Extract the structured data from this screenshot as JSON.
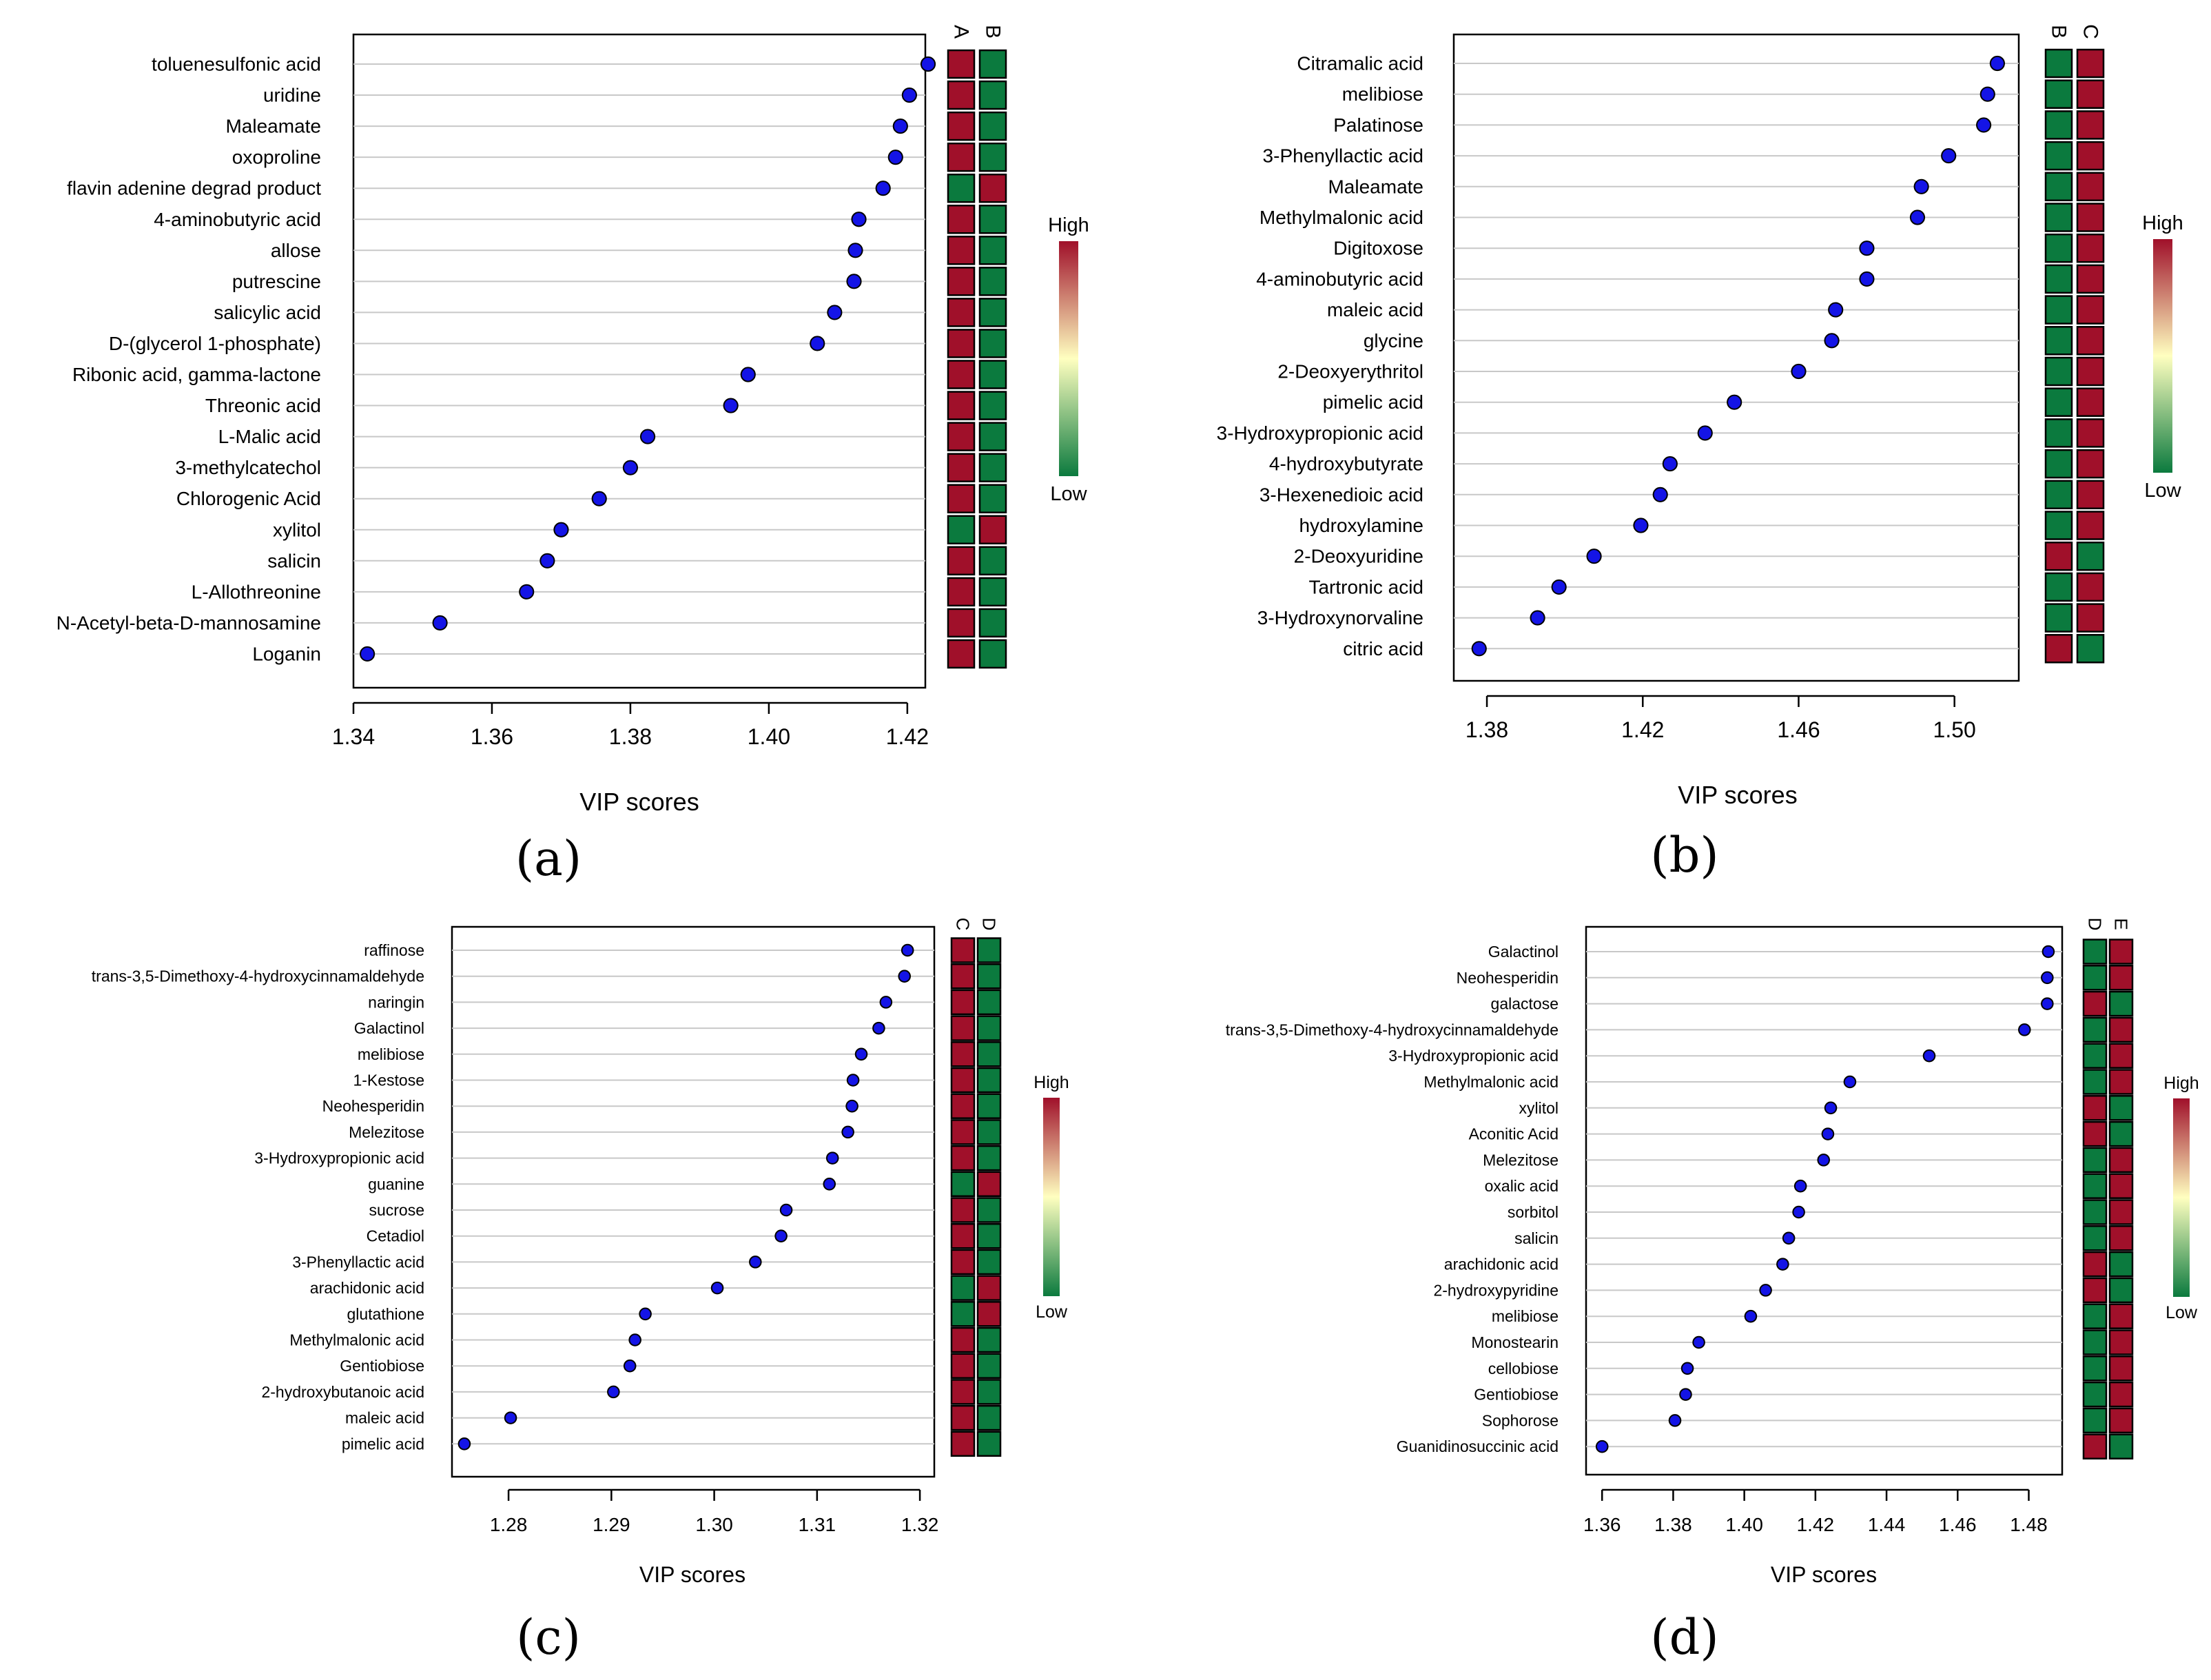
{
  "colors": {
    "high": "#a0102a",
    "mid": "#ffffc0",
    "low": "#0b7a3e",
    "point": "#1414e6",
    "grid": "#c8c8c8"
  },
  "chart_data": [
    {
      "type": "scatter",
      "panel_label": "(a)",
      "xlabel": "VIP scores",
      "xlim": [
        1.34,
        1.425
      ],
      "xticks": [
        "1.34",
        "1.36",
        "1.38",
        "1.40",
        "1.42"
      ],
      "groups": [
        "A",
        "B"
      ],
      "legend": {
        "high": "High",
        "low": "Low"
      },
      "rows": [
        {
          "name": "toluenesulfonic acid",
          "vip": 1.423,
          "levels": [
            "high",
            "low"
          ]
        },
        {
          "name": "uridine",
          "vip": 1.4203,
          "levels": [
            "high",
            "low"
          ]
        },
        {
          "name": "Maleamate",
          "vip": 1.419,
          "levels": [
            "high",
            "low"
          ]
        },
        {
          "name": "oxoproline",
          "vip": 1.4183,
          "levels": [
            "high",
            "low"
          ]
        },
        {
          "name": "flavin adenine degrad product",
          "vip": 1.4165,
          "levels": [
            "low",
            "high"
          ]
        },
        {
          "name": "4-aminobutyric acid",
          "vip": 1.413,
          "levels": [
            "high",
            "low"
          ]
        },
        {
          "name": "allose",
          "vip": 1.4125,
          "levels": [
            "high",
            "low"
          ]
        },
        {
          "name": "putrescine",
          "vip": 1.4123,
          "levels": [
            "high",
            "low"
          ]
        },
        {
          "name": "salicylic acid",
          "vip": 1.4095,
          "levels": [
            "high",
            "low"
          ]
        },
        {
          "name": "D-(glycerol 1-phosphate)",
          "vip": 1.407,
          "levels": [
            "high",
            "low"
          ]
        },
        {
          "name": "Ribonic acid, gamma-lactone",
          "vip": 1.397,
          "levels": [
            "high",
            "low"
          ]
        },
        {
          "name": "Threonic acid",
          "vip": 1.3945,
          "levels": [
            "high",
            "low"
          ]
        },
        {
          "name": "L-Malic acid",
          "vip": 1.3825,
          "levels": [
            "high",
            "low"
          ]
        },
        {
          "name": "3-methylcatechol",
          "vip": 1.38,
          "levels": [
            "high",
            "low"
          ]
        },
        {
          "name": "Chlorogenic Acid",
          "vip": 1.3755,
          "levels": [
            "high",
            "low"
          ]
        },
        {
          "name": "xylitol",
          "vip": 1.37,
          "levels": [
            "low",
            "high"
          ]
        },
        {
          "name": "salicin",
          "vip": 1.368,
          "levels": [
            "high",
            "low"
          ]
        },
        {
          "name": "L-Allothreonine",
          "vip": 1.365,
          "levels": [
            "high",
            "low"
          ]
        },
        {
          "name": "N-Acetyl-beta-D-mannosamine",
          "vip": 1.3525,
          "levels": [
            "high",
            "low"
          ]
        },
        {
          "name": "Loganin",
          "vip": 1.342,
          "levels": [
            "high",
            "low"
          ]
        }
      ]
    },
    {
      "type": "scatter",
      "panel_label": "(b)",
      "xlabel": "VIP scores",
      "xlim": [
        1.37,
        1.52
      ],
      "xticks": [
        "1.38",
        "1.42",
        "1.46",
        "1.50"
      ],
      "groups": [
        "B",
        "C"
      ],
      "legend": {
        "high": "High",
        "low": "Low"
      },
      "rows": [
        {
          "name": "Citramalic acid",
          "vip": 1.511,
          "levels": [
            "low",
            "high"
          ]
        },
        {
          "name": "melibiose",
          "vip": 1.5085,
          "levels": [
            "low",
            "high"
          ]
        },
        {
          "name": "Palatinose",
          "vip": 1.5075,
          "levels": [
            "low",
            "high"
          ]
        },
        {
          "name": "3-Phenyllactic acid",
          "vip": 1.4985,
          "levels": [
            "low",
            "high"
          ]
        },
        {
          "name": "Maleamate",
          "vip": 1.4915,
          "levels": [
            "low",
            "high"
          ]
        },
        {
          "name": "Methylmalonic acid",
          "vip": 1.4905,
          "levels": [
            "low",
            "high"
          ]
        },
        {
          "name": "Digitoxose",
          "vip": 1.4775,
          "levels": [
            "low",
            "high"
          ]
        },
        {
          "name": "4-aminobutyric acid",
          "vip": 1.4775,
          "levels": [
            "low",
            "high"
          ]
        },
        {
          "name": "maleic acid",
          "vip": 1.4695,
          "levels": [
            "low",
            "high"
          ]
        },
        {
          "name": "glycine",
          "vip": 1.4685,
          "levels": [
            "low",
            "high"
          ]
        },
        {
          "name": "2-Deoxyerythritol",
          "vip": 1.46,
          "levels": [
            "low",
            "high"
          ]
        },
        {
          "name": "pimelic acid",
          "vip": 1.4435,
          "levels": [
            "low",
            "high"
          ]
        },
        {
          "name": "3-Hydroxypropionic acid",
          "vip": 1.436,
          "levels": [
            "low",
            "high"
          ]
        },
        {
          "name": "4-hydroxybutyrate",
          "vip": 1.427,
          "levels": [
            "low",
            "high"
          ]
        },
        {
          "name": "3-Hexenedioic acid",
          "vip": 1.4245,
          "levels": [
            "low",
            "high"
          ]
        },
        {
          "name": "hydroxylamine",
          "vip": 1.4195,
          "levels": [
            "low",
            "high"
          ]
        },
        {
          "name": "2-Deoxyuridine",
          "vip": 1.4075,
          "levels": [
            "high",
            "low"
          ]
        },
        {
          "name": "Tartronic acid",
          "vip": 1.3985,
          "levels": [
            "low",
            "high"
          ]
        },
        {
          "name": "3-Hydroxynorvaline",
          "vip": 1.393,
          "levels": [
            "low",
            "high"
          ]
        },
        {
          "name": "citric acid",
          "vip": 1.378,
          "levels": [
            "high",
            "low"
          ]
        }
      ]
    },
    {
      "type": "scatter",
      "panel_label": "(c)",
      "xlabel": "VIP scores",
      "xlim": [
        1.275,
        1.32
      ],
      "xticks": [
        "1.28",
        "1.29",
        "1.30",
        "1.31",
        "1.32"
      ],
      "groups": [
        "C",
        "D"
      ],
      "legend": {
        "high": "High",
        "low": "Low"
      },
      "rows": [
        {
          "name": "raffinose",
          "vip": 1.3188,
          "levels": [
            "high",
            "low"
          ]
        },
        {
          "name": "trans-3,5-Dimethoxy-4-hydroxycinnamaldehyde",
          "vip": 1.3185,
          "levels": [
            "high",
            "low"
          ]
        },
        {
          "name": "naringin",
          "vip": 1.3167,
          "levels": [
            "high",
            "low"
          ]
        },
        {
          "name": "Galactinol",
          "vip": 1.316,
          "levels": [
            "high",
            "low"
          ]
        },
        {
          "name": "melibiose",
          "vip": 1.3143,
          "levels": [
            "high",
            "low"
          ]
        },
        {
          "name": "1-Kestose",
          "vip": 1.3135,
          "levels": [
            "high",
            "low"
          ]
        },
        {
          "name": "Neohesperidin",
          "vip": 1.3134,
          "levels": [
            "high",
            "low"
          ]
        },
        {
          "name": "Melezitose",
          "vip": 1.313,
          "levels": [
            "high",
            "low"
          ]
        },
        {
          "name": "3-Hydroxypropionic acid",
          "vip": 1.3115,
          "levels": [
            "high",
            "low"
          ]
        },
        {
          "name": "guanine",
          "vip": 1.3112,
          "levels": [
            "low",
            "high"
          ]
        },
        {
          "name": "sucrose",
          "vip": 1.307,
          "levels": [
            "high",
            "low"
          ]
        },
        {
          "name": "Cetadiol",
          "vip": 1.3065,
          "levels": [
            "high",
            "low"
          ]
        },
        {
          "name": "3-Phenyllactic acid",
          "vip": 1.304,
          "levels": [
            "high",
            "low"
          ]
        },
        {
          "name": "arachidonic acid",
          "vip": 1.3003,
          "levels": [
            "low",
            "high"
          ]
        },
        {
          "name": "glutathione",
          "vip": 1.2933,
          "levels": [
            "low",
            "high"
          ]
        },
        {
          "name": "Methylmalonic acid",
          "vip": 1.2923,
          "levels": [
            "high",
            "low"
          ]
        },
        {
          "name": "Gentiobiose",
          "vip": 1.2918,
          "levels": [
            "high",
            "low"
          ]
        },
        {
          "name": "2-hydroxybutanoic acid",
          "vip": 1.2902,
          "levels": [
            "high",
            "low"
          ]
        },
        {
          "name": "maleic acid",
          "vip": 1.2802,
          "levels": [
            "high",
            "low"
          ]
        },
        {
          "name": "pimelic acid",
          "vip": 1.2757,
          "levels": [
            "high",
            "low"
          ]
        }
      ]
    },
    {
      "type": "scatter",
      "panel_label": "(d)",
      "xlabel": "VIP scores",
      "xlim": [
        1.355,
        1.49
      ],
      "xticks": [
        "1.36",
        "1.38",
        "1.40",
        "1.42",
        "1.44",
        "1.46",
        "1.48"
      ],
      "groups": [
        "D",
        "E"
      ],
      "legend": {
        "high": "High",
        "low": "Low"
      },
      "rows": [
        {
          "name": "Galactinol",
          "vip": 1.4855,
          "levels": [
            "low",
            "high"
          ]
        },
        {
          "name": "Neohesperidin",
          "vip": 1.4852,
          "levels": [
            "low",
            "high"
          ]
        },
        {
          "name": "galactose",
          "vip": 1.4852,
          "levels": [
            "high",
            "low"
          ]
        },
        {
          "name": "trans-3,5-Dimethoxy-4-hydroxycinnamaldehyde",
          "vip": 1.4788,
          "levels": [
            "low",
            "high"
          ]
        },
        {
          "name": "3-Hydroxypropionic acid",
          "vip": 1.452,
          "levels": [
            "low",
            "high"
          ]
        },
        {
          "name": "Methylmalonic acid",
          "vip": 1.4297,
          "levels": [
            "low",
            "high"
          ]
        },
        {
          "name": "xylitol",
          "vip": 1.4243,
          "levels": [
            "high",
            "low"
          ]
        },
        {
          "name": "Aconitic Acid",
          "vip": 1.4235,
          "levels": [
            "high",
            "low"
          ]
        },
        {
          "name": "Melezitose",
          "vip": 1.4223,
          "levels": [
            "low",
            "high"
          ]
        },
        {
          "name": "oxalic acid",
          "vip": 1.4158,
          "levels": [
            "low",
            "high"
          ]
        },
        {
          "name": "sorbitol",
          "vip": 1.4153,
          "levels": [
            "low",
            "high"
          ]
        },
        {
          "name": "salicin",
          "vip": 1.4125,
          "levels": [
            "low",
            "high"
          ]
        },
        {
          "name": "arachidonic acid",
          "vip": 1.4108,
          "levels": [
            "high",
            "low"
          ]
        },
        {
          "name": "2-hydroxypyridine",
          "vip": 1.406,
          "levels": [
            "high",
            "low"
          ]
        },
        {
          "name": "melibiose",
          "vip": 1.4018,
          "levels": [
            "low",
            "high"
          ]
        },
        {
          "name": "Monostearin",
          "vip": 1.3872,
          "levels": [
            "low",
            "high"
          ]
        },
        {
          "name": "cellobiose",
          "vip": 1.384,
          "levels": [
            "low",
            "high"
          ]
        },
        {
          "name": "Gentiobiose",
          "vip": 1.3835,
          "levels": [
            "low",
            "high"
          ]
        },
        {
          "name": "Sophorose",
          "vip": 1.3805,
          "levels": [
            "low",
            "high"
          ]
        },
        {
          "name": "Guanidinosuccinic acid",
          "vip": 1.36,
          "levels": [
            "high",
            "low"
          ]
        }
      ]
    }
  ]
}
